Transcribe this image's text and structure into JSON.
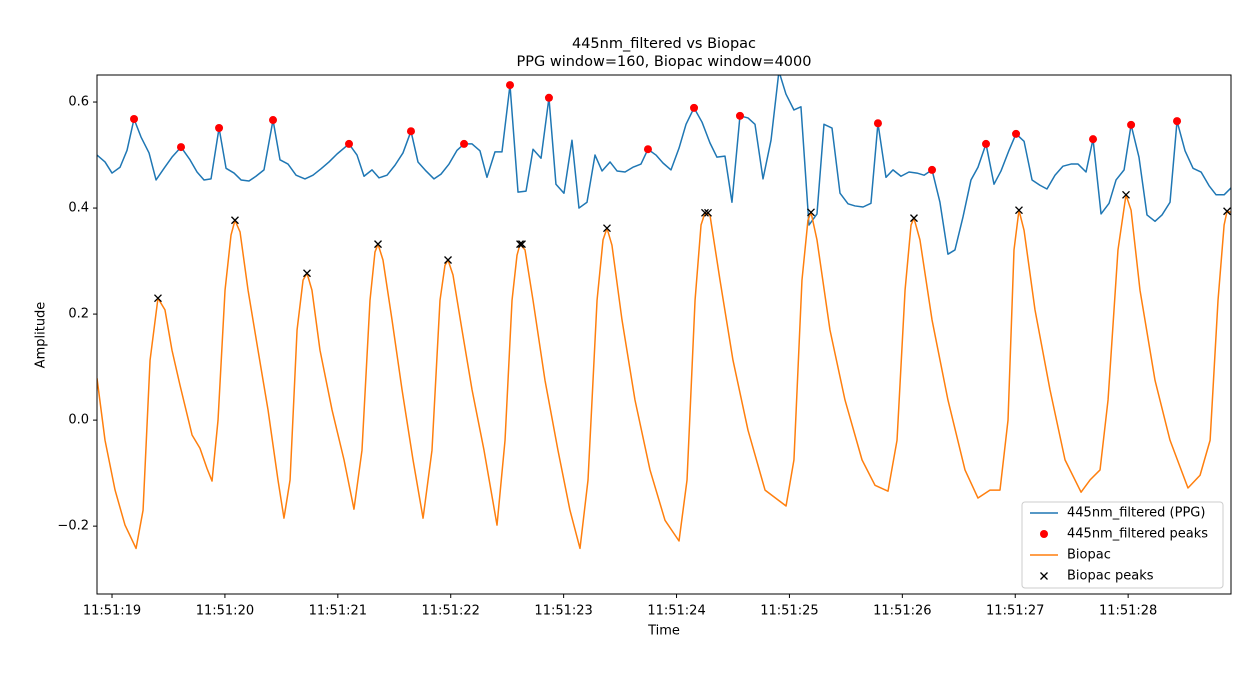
{
  "chart_data": {
    "type": "line",
    "title": "445nm_filtered vs Biopac",
    "subtitle": "PPG window=160, Biopac window=4000",
    "xlabel": "Time",
    "ylabel": "Amplitude",
    "xlim": [
      18.867,
      28.911
    ],
    "ylim": [
      -0.328,
      0.651
    ],
    "xticks": [
      {
        "value": 19,
        "label": "11:51:19"
      },
      {
        "value": 20,
        "label": "11:51:20"
      },
      {
        "value": 21,
        "label": "11:51:21"
      },
      {
        "value": 22,
        "label": "11:51:22"
      },
      {
        "value": 23,
        "label": "11:51:23"
      },
      {
        "value": 24,
        "label": "11:51:24"
      },
      {
        "value": 25,
        "label": "11:51:25"
      },
      {
        "value": 26,
        "label": "11:51:26"
      },
      {
        "value": 27,
        "label": "11:51:27"
      },
      {
        "value": 28,
        "label": "11:51:28"
      }
    ],
    "yticks": [
      {
        "value": -0.2,
        "label": "−0.2"
      },
      {
        "value": 0,
        "label": "0.0"
      },
      0.2,
      0.4,
      0.6
    ],
    "legend": "lower right",
    "series": [
      {
        "name": "445nm_filtered (PPG)",
        "color": "#1f77b4",
        "style": "line",
        "x": [
          18.867,
          18.938,
          19.0,
          19.071,
          19.133,
          19.195,
          19.257,
          19.328,
          19.39,
          19.461,
          19.531,
          19.611,
          19.691,
          19.753,
          19.815,
          19.877,
          19.948,
          20.01,
          20.081,
          20.143,
          20.213,
          20.275,
          20.346,
          20.426,
          20.488,
          20.559,
          20.63,
          20.709,
          20.78,
          20.851,
          20.922,
          20.993,
          21.099,
          21.17,
          21.232,
          21.303,
          21.365,
          21.436,
          21.507,
          21.577,
          21.648,
          21.71,
          21.781,
          21.852,
          21.914,
          21.985,
          22.056,
          22.118,
          22.189,
          22.259,
          22.321,
          22.392,
          22.454,
          22.525,
          22.596,
          22.667,
          22.729,
          22.8,
          22.87,
          22.932,
          23.003,
          23.074,
          23.136,
          23.207,
          23.278,
          23.34,
          23.411,
          23.473,
          23.544,
          23.614,
          23.685,
          23.747,
          23.818,
          23.88,
          23.951,
          24.022,
          24.084,
          24.155,
          24.226,
          24.296,
          24.358,
          24.429,
          24.491,
          24.562,
          24.633,
          24.695,
          24.766,
          24.837,
          24.907,
          24.969,
          25.04,
          25.102,
          25.173,
          25.244,
          25.306,
          25.377,
          25.448,
          25.519,
          25.581,
          25.652,
          25.722,
          25.784,
          25.855,
          25.917,
          25.988,
          26.059,
          26.13,
          26.192,
          26.263,
          26.333,
          26.404,
          26.466,
          26.537,
          26.608,
          26.67,
          26.741,
          26.812,
          26.874,
          26.945,
          27.007,
          27.078,
          27.149,
          27.219,
          27.281,
          27.352,
          27.423,
          27.494,
          27.556,
          27.627,
          27.689,
          27.76,
          27.831,
          27.893,
          27.964,
          28.026,
          28.096,
          28.167,
          28.238,
          28.3,
          28.371,
          28.433,
          28.504,
          28.575,
          28.646,
          28.717,
          28.779,
          28.85,
          28.911
        ],
        "values": [
          0.5,
          0.487,
          0.466,
          0.477,
          0.509,
          0.568,
          0.534,
          0.504,
          0.453,
          0.475,
          0.496,
          0.515,
          0.491,
          0.468,
          0.453,
          0.455,
          0.551,
          0.475,
          0.466,
          0.453,
          0.451,
          0.46,
          0.472,
          0.566,
          0.491,
          0.483,
          0.462,
          0.455,
          0.462,
          0.474,
          0.487,
          0.502,
          0.521,
          0.5,
          0.46,
          0.472,
          0.457,
          0.462,
          0.481,
          0.504,
          0.545,
          0.487,
          0.47,
          0.455,
          0.464,
          0.483,
          0.509,
          0.521,
          0.521,
          0.508,
          0.458,
          0.506,
          0.506,
          0.632,
          0.43,
          0.432,
          0.511,
          0.494,
          0.608,
          0.445,
          0.428,
          0.528,
          0.4,
          0.411,
          0.5,
          0.47,
          0.487,
          0.47,
          0.468,
          0.477,
          0.483,
          0.511,
          0.5,
          0.485,
          0.472,
          0.513,
          0.558,
          0.589,
          0.562,
          0.523,
          0.496,
          0.498,
          0.411,
          0.574,
          0.57,
          0.558,
          0.455,
          0.528,
          0.658,
          0.615,
          0.585,
          0.591,
          0.368,
          0.389,
          0.558,
          0.551,
          0.428,
          0.408,
          0.404,
          0.402,
          0.409,
          0.56,
          0.458,
          0.472,
          0.46,
          0.468,
          0.466,
          0.462,
          0.472,
          0.411,
          0.313,
          0.321,
          0.383,
          0.453,
          0.477,
          0.521,
          0.445,
          0.47,
          0.509,
          0.54,
          0.526,
          0.453,
          0.443,
          0.436,
          0.462,
          0.479,
          0.483,
          0.483,
          0.468,
          0.53,
          0.389,
          0.409,
          0.453,
          0.472,
          0.557,
          0.496,
          0.387,
          0.375,
          0.387,
          0.411,
          0.564,
          0.508,
          0.475,
          0.468,
          0.442,
          0.425,
          0.425,
          0.438
        ]
      },
      {
        "name": "445nm_filtered peaks",
        "color": "#ff0000",
        "style": "dot",
        "x": [
          19.195,
          19.611,
          19.948,
          20.426,
          21.099,
          21.648,
          22.118,
          22.525,
          22.87,
          23.747,
          24.155,
          24.562,
          25.784,
          26.263,
          26.741,
          27.007,
          27.689,
          28.026,
          28.433
        ],
        "values": [
          0.568,
          0.515,
          0.551,
          0.566,
          0.521,
          0.545,
          0.521,
          0.632,
          0.608,
          0.511,
          0.589,
          0.574,
          0.56,
          0.472,
          0.521,
          0.54,
          0.53,
          0.557,
          0.564
        ]
      },
      {
        "name": "Biopac",
        "color": "#ff7f0e",
        "style": "line",
        "x": [
          18.867,
          18.938,
          19.027,
          19.115,
          19.213,
          19.275,
          19.337,
          19.407,
          19.469,
          19.531,
          19.602,
          19.709,
          19.779,
          19.841,
          19.886,
          19.939,
          20.001,
          20.054,
          20.089,
          20.134,
          20.205,
          20.293,
          20.382,
          20.47,
          20.523,
          20.577,
          20.639,
          20.692,
          20.727,
          20.771,
          20.842,
          20.949,
          21.055,
          21.143,
          21.214,
          21.285,
          21.329,
          21.356,
          21.4,
          21.48,
          21.569,
          21.666,
          21.755,
          21.834,
          21.905,
          21.949,
          21.976,
          22.02,
          22.1,
          22.189,
          22.295,
          22.41,
          22.481,
          22.543,
          22.587,
          22.614,
          22.658,
          22.729,
          22.835,
          22.95,
          23.056,
          23.145,
          23.216,
          23.296,
          23.349,
          23.384,
          23.428,
          23.517,
          23.632,
          23.765,
          23.898,
          24.022,
          24.093,
          24.164,
          24.217,
          24.252,
          24.296,
          24.385,
          24.5,
          24.633,
          24.784,
          24.97,
          25.04,
          25.111,
          25.164,
          25.191,
          25.244,
          25.359,
          25.492,
          25.643,
          25.758,
          25.873,
          25.953,
          26.024,
          26.077,
          26.103,
          26.156,
          26.263,
          26.404,
          26.555,
          26.67,
          26.776,
          26.865,
          26.936,
          26.989,
          27.033,
          27.078,
          27.175,
          27.308,
          27.441,
          27.583,
          27.662,
          27.751,
          27.822,
          27.91,
          27.981,
          28.026,
          28.105,
          28.238,
          28.371,
          28.53,
          28.637,
          28.726,
          28.796,
          28.85,
          28.876,
          28.911
        ],
        "values": [
          0.079,
          -0.038,
          -0.132,
          -0.198,
          -0.242,
          -0.17,
          0.113,
          0.23,
          0.208,
          0.132,
          0.066,
          -0.028,
          -0.053,
          -0.091,
          -0.115,
          0.0,
          0.245,
          0.349,
          0.377,
          0.355,
          0.245,
          0.132,
          0.019,
          -0.113,
          -0.185,
          -0.113,
          0.17,
          0.264,
          0.277,
          0.245,
          0.132,
          0.019,
          -0.075,
          -0.168,
          -0.057,
          0.226,
          0.317,
          0.332,
          0.302,
          0.189,
          0.057,
          -0.075,
          -0.185,
          -0.057,
          0.226,
          0.292,
          0.302,
          0.274,
          0.17,
          0.057,
          -0.057,
          -0.198,
          -0.038,
          0.226,
          0.311,
          0.332,
          0.321,
          0.226,
          0.075,
          -0.057,
          -0.17,
          -0.242,
          -0.113,
          0.226,
          0.34,
          0.362,
          0.33,
          0.189,
          0.038,
          -0.094,
          -0.189,
          -0.228,
          -0.113,
          0.226,
          0.368,
          0.391,
          0.387,
          0.264,
          0.113,
          -0.019,
          -0.132,
          -0.162,
          -0.075,
          0.264,
          0.377,
          0.392,
          0.34,
          0.17,
          0.038,
          -0.075,
          -0.123,
          -0.134,
          -0.038,
          0.245,
          0.368,
          0.381,
          0.34,
          0.189,
          0.038,
          -0.094,
          -0.147,
          -0.132,
          -0.132,
          0.0,
          0.321,
          0.396,
          0.358,
          0.208,
          0.057,
          -0.075,
          -0.136,
          -0.113,
          -0.094,
          0.038,
          0.321,
          0.425,
          0.396,
          0.245,
          0.075,
          -0.038,
          -0.128,
          -0.104,
          -0.038,
          0.226,
          0.368,
          0.394,
          0.392
        ]
      },
      {
        "name": "Biopac peaks",
        "color": "#000000",
        "style": "cross",
        "x": [
          19.407,
          20.089,
          20.727,
          21.356,
          21.976,
          22.614,
          22.631,
          23.384,
          24.252,
          24.279,
          25.191,
          26.103,
          27.033,
          27.981,
          28.876
        ],
        "values": [
          0.23,
          0.377,
          0.277,
          0.332,
          0.302,
          0.332,
          0.332,
          0.362,
          0.391,
          0.391,
          0.392,
          0.381,
          0.396,
          0.425,
          0.394
        ]
      }
    ]
  }
}
